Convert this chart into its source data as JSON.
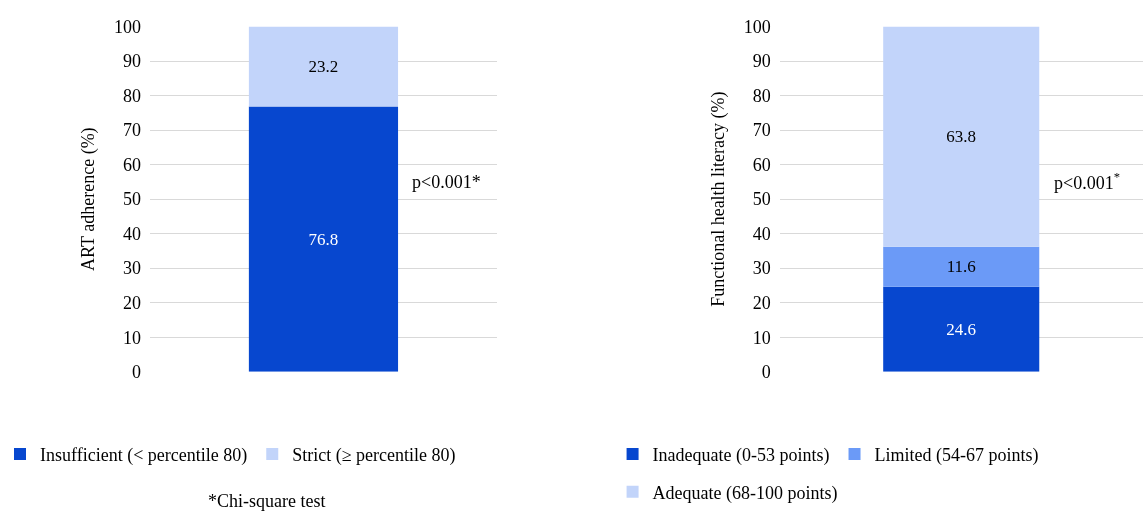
{
  "chart_data": [
    {
      "type": "bar",
      "stacked": true,
      "ylabel": "ART adherence (%)",
      "categories": [
        null
      ],
      "ylim": [
        0,
        100
      ],
      "yticks": [
        0,
        10,
        20,
        30,
        40,
        50,
        60,
        70,
        80,
        90,
        100
      ],
      "grid": "y",
      "legend": "bottom",
      "data_labels": true,
      "series": [
        {
          "name": "Insufficient (< percentile 80)",
          "color": "#0747cf",
          "values": [
            76.8
          ]
        },
        {
          "name": "Strict (≥ percentile 80)",
          "color": "#c2d4fa",
          "values": [
            23.2
          ]
        }
      ],
      "annotations": [
        "p<0.001*",
        "*Chi-square test"
      ]
    },
    {
      "type": "bar",
      "stacked": true,
      "ylabel": "Functional health literacy (%)",
      "categories": [
        null
      ],
      "ylim": [
        0,
        100
      ],
      "yticks": [
        0,
        10,
        20,
        30,
        40,
        50,
        60,
        70,
        80,
        90,
        100
      ],
      "grid": "y",
      "legend": "bottom",
      "data_labels": true,
      "series": [
        {
          "name": "Inadequate (0-53 points)",
          "color": "#0747cf",
          "values": [
            24.6
          ]
        },
        {
          "name": "Limited (54-67 points)",
          "color": "#6b9af7",
          "values": [
            11.6
          ]
        },
        {
          "name": "Adequate (68-100 points)",
          "color": "#c2d4fa",
          "values": [
            63.8
          ]
        }
      ],
      "annotations": [
        "p<0.001$^{*}$"
      ]
    }
  ]
}
